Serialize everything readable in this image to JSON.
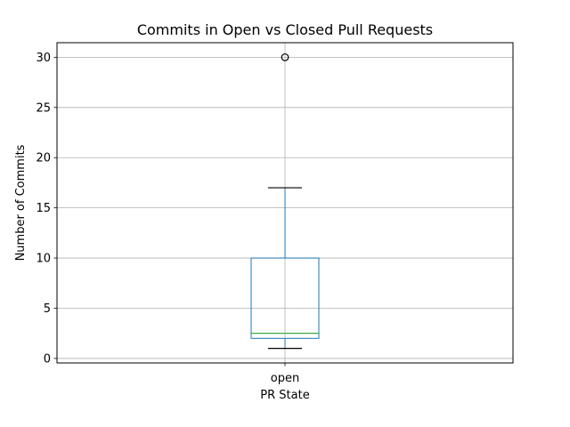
{
  "chart_data": {
    "type": "box",
    "title": "Commits in Open vs Closed Pull Requests",
    "xlabel": "PR State",
    "ylabel": "Number of Commits",
    "categories": [
      "open"
    ],
    "boxes": [
      {
        "category": "open",
        "whisker_low": 1,
        "q1": 2,
        "median": 2.5,
        "q3": 10,
        "whisker_high": 17,
        "outliers": [
          30
        ]
      }
    ],
    "ylim": [
      -0.45,
      31.45
    ],
    "yticks": [
      0,
      5,
      10,
      15,
      20,
      25,
      30
    ],
    "ytick_labels": [
      "0",
      "5",
      "10",
      "15",
      "20",
      "25",
      "30"
    ],
    "grid": true,
    "colors": {
      "box": "#1f77b4",
      "median": "#2ca02c",
      "whisker_cap": "#000000",
      "outlier": "#000000",
      "grid": "#b0b0b0"
    }
  }
}
